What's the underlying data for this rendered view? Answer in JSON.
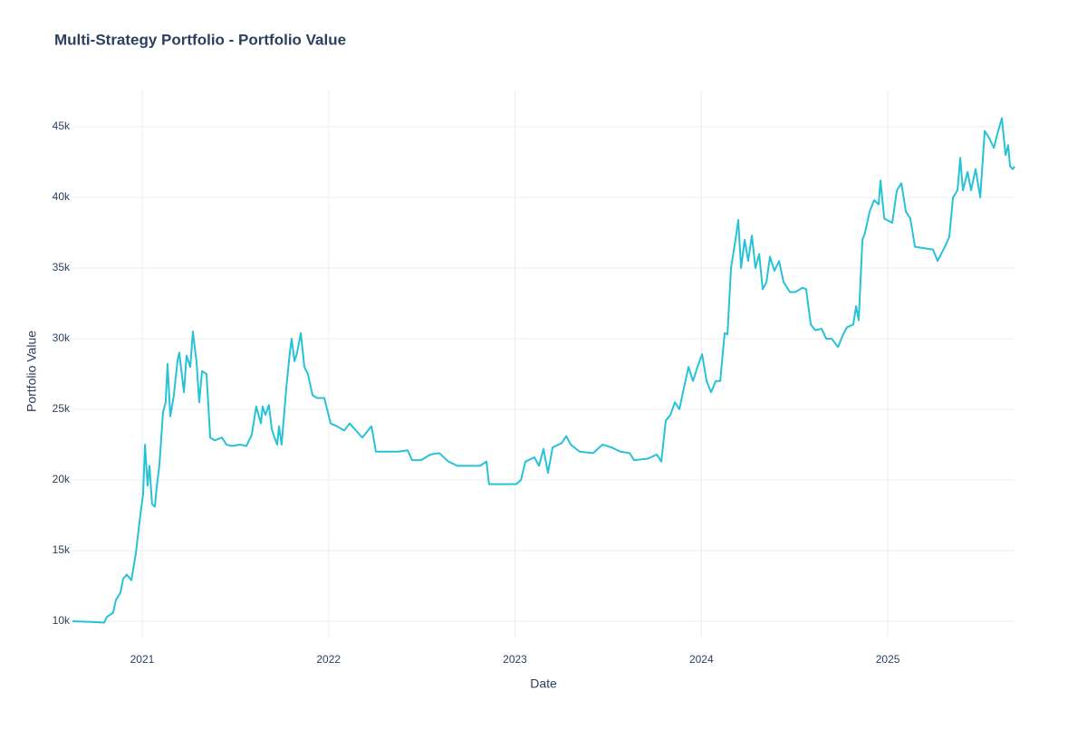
{
  "chart_data": {
    "type": "line",
    "title": "Multi-Strategy Portfolio - Portfolio Value",
    "x_label": "Date",
    "y_label": "Portfolio Value",
    "grid": true,
    "xlim": [
      2020.626,
      2025.68
    ],
    "xticks": [
      2021,
      2022,
      2023,
      2024,
      2025
    ],
    "ylim": [
      8780,
      47560
    ],
    "yticks": [
      {
        "value": 10000,
        "label": "10k"
      },
      {
        "value": 15000,
        "label": "15k"
      },
      {
        "value": 20000,
        "label": "20k"
      },
      {
        "value": 25000,
        "label": "25k"
      },
      {
        "value": 30000,
        "label": "30k"
      },
      {
        "value": 35000,
        "label": "35k"
      },
      {
        "value": 40000,
        "label": "40k"
      },
      {
        "value": 45000,
        "label": "45k"
      }
    ],
    "x": [
      2020.626,
      2020.723,
      2020.796,
      2020.81,
      2020.844,
      2020.859,
      2020.883,
      2020.898,
      2020.917,
      2020.942,
      2020.966,
      2020.99,
      2021.005,
      2021.015,
      2021.029,
      2021.039,
      2021.053,
      2021.068,
      2021.078,
      2021.092,
      2021.112,
      2021.126,
      2021.136,
      2021.151,
      2021.17,
      2021.19,
      2021.199,
      2021.224,
      2021.238,
      2021.258,
      2021.272,
      2021.292,
      2021.306,
      2021.321,
      2021.345,
      2021.365,
      2021.389,
      2021.428,
      2021.452,
      2021.481,
      2021.525,
      2021.559,
      2021.588,
      2021.612,
      2021.637,
      2021.646,
      2021.661,
      2021.68,
      2021.695,
      2021.71,
      2021.724,
      2021.734,
      2021.748,
      2021.773,
      2021.792,
      2021.802,
      2021.817,
      2021.831,
      2021.851,
      2021.87,
      2021.889,
      2021.914,
      2021.938,
      2021.977,
      2022.011,
      2022.045,
      2022.084,
      2022.113,
      2022.147,
      2022.181,
      2022.23,
      2022.254,
      2022.303,
      2022.375,
      2022.424,
      2022.448,
      2022.497,
      2022.546,
      2022.594,
      2022.643,
      2022.691,
      2022.764,
      2022.813,
      2022.847,
      2022.861,
      2022.934,
      2023.007,
      2023.032,
      2023.056,
      2023.104,
      2023.129,
      2023.153,
      2023.177,
      2023.202,
      2023.25,
      2023.275,
      2023.299,
      2023.347,
      2023.42,
      2023.469,
      2023.518,
      2023.566,
      2023.615,
      2023.639,
      2023.712,
      2023.761,
      2023.785,
      2023.809,
      2023.834,
      2023.858,
      2023.882,
      2023.906,
      2023.931,
      2023.955,
      2023.979,
      2024.004,
      2024.028,
      2024.052,
      2024.077,
      2024.101,
      2024.125,
      2024.14,
      2024.159,
      2024.183,
      2024.198,
      2024.213,
      2024.232,
      2024.251,
      2024.271,
      2024.29,
      2024.31,
      2024.329,
      2024.349,
      2024.368,
      2024.392,
      2024.417,
      2024.441,
      2024.475,
      2024.504,
      2024.543,
      2024.562,
      2024.587,
      2024.611,
      2024.645,
      2024.669,
      2024.699,
      2024.733,
      2024.757,
      2024.781,
      2024.815,
      2024.83,
      2024.844,
      2024.864,
      2024.878,
      2024.903,
      2024.927,
      2024.951,
      2024.961,
      2024.981,
      2025.024,
      2025.049,
      2025.073,
      2025.097,
      2025.121,
      2025.146,
      2025.194,
      2025.243,
      2025.267,
      2025.306,
      2025.33,
      2025.35,
      2025.374,
      2025.389,
      2025.403,
      2025.428,
      2025.447,
      2025.471,
      2025.496,
      2025.52,
      2025.544,
      2025.569,
      2025.588,
      2025.612,
      2025.632,
      2025.646,
      2025.656,
      2025.671,
      2025.68
    ],
    "series": [
      {
        "name": "Portfolio Value",
        "color": "#26c2d6",
        "values": [
          10000,
          9950,
          9900,
          10300,
          10600,
          11500,
          12000,
          13000,
          13300,
          12900,
          14800,
          17500,
          19000,
          22500,
          19600,
          21000,
          18300,
          18100,
          19500,
          21000,
          24800,
          25500,
          28200,
          24500,
          26000,
          28500,
          29000,
          26200,
          28800,
          28000,
          30500,
          28300,
          25500,
          27700,
          27500,
          23000,
          22800,
          23000,
          22500,
          22400,
          22500,
          22400,
          23200,
          25200,
          24000,
          25200,
          24600,
          25300,
          23600,
          23000,
          22500,
          23800,
          22500,
          26500,
          29000,
          30000,
          28400,
          29000,
          30400,
          28000,
          27500,
          26000,
          25800,
          25800,
          24000,
          23800,
          23500,
          24000,
          23500,
          23000,
          23800,
          22000,
          22000,
          22000,
          22100,
          21400,
          21400,
          21800,
          21900,
          21300,
          21000,
          21000,
          21000,
          21300,
          19700,
          19700,
          19700,
          20000,
          21300,
          21600,
          21000,
          22200,
          20500,
          22300,
          22600,
          23100,
          22500,
          22000,
          21900,
          22500,
          22300,
          22000,
          21900,
          21400,
          21500,
          21800,
          21300,
          24200,
          24600,
          25500,
          25000,
          26500,
          28000,
          27000,
          28000,
          28900,
          27000,
          26200,
          27000,
          27000,
          30400,
          30300,
          35000,
          37000,
          38400,
          35000,
          37000,
          35500,
          37300,
          35000,
          36000,
          33500,
          34000,
          35800,
          34800,
          35500,
          34000,
          33300,
          33300,
          33600,
          33500,
          31000,
          30600,
          30700,
          30000,
          30000,
          29400,
          30200,
          30800,
          31000,
          32300,
          31300,
          37000,
          37500,
          39000,
          39800,
          39500,
          41200,
          38500,
          38200,
          40500,
          41000,
          39000,
          38500,
          36500,
          36400,
          36300,
          35500,
          36500,
          37200,
          40000,
          40500,
          42800,
          40500,
          41800,
          40500,
          42000,
          40000,
          44700,
          44200,
          43500,
          44500,
          45600,
          43000,
          43700,
          42200,
          42000,
          42200
        ]
      }
    ]
  }
}
